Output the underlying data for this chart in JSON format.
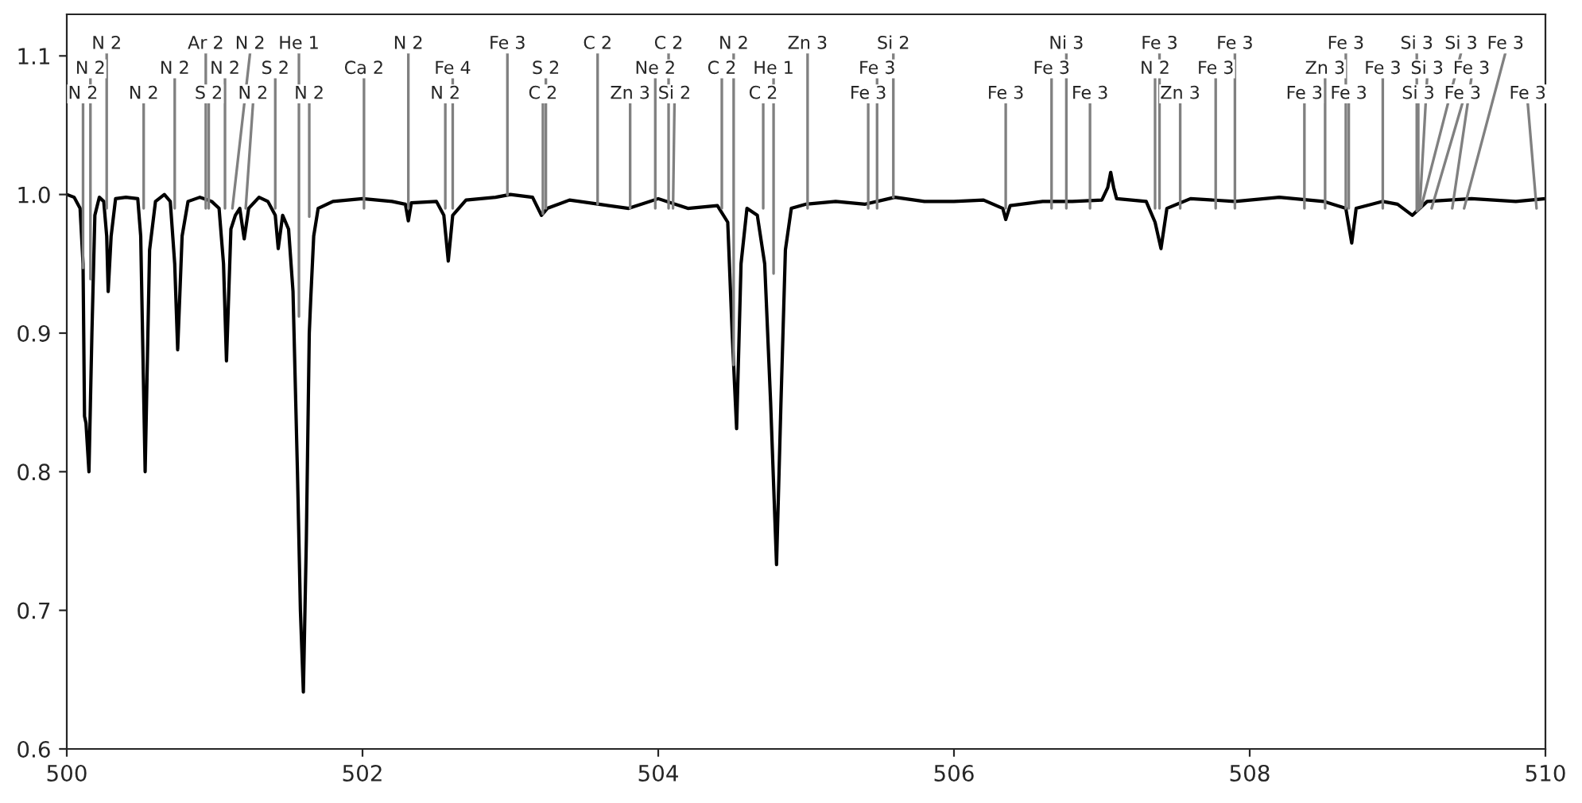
{
  "chart_data": {
    "type": "line",
    "xlim": [
      500,
      510
    ],
    "xticks": [
      500,
      502,
      504,
      506,
      508,
      510
    ],
    "ylim": [
      0.6,
      1.13
    ],
    "yticks": [
      0.6,
      0.7,
      0.8,
      0.9,
      {
        "value": 1.0,
        "label": "1.0"
      },
      1.1
    ],
    "grid": false,
    "marker": "none",
    "line_style": "solid",
    "series": [
      {
        "color": "#000000",
        "x": [
          500.0,
          500.05,
          500.09,
          500.11,
          500.12,
          500.13,
          500.15,
          500.17,
          500.19,
          500.22,
          500.25,
          500.27,
          500.28,
          500.3,
          500.33,
          500.4,
          500.48,
          500.5,
          500.53,
          500.56,
          500.6,
          500.66,
          500.7,
          500.73,
          500.75,
          500.78,
          500.82,
          500.9,
          500.98,
          501.03,
          501.06,
          501.08,
          501.11,
          501.14,
          501.17,
          501.2,
          501.23,
          501.3,
          501.36,
          501.41,
          501.43,
          501.46,
          501.5,
          501.53,
          501.56,
          501.58,
          501.6,
          501.62,
          501.64,
          501.65,
          501.67,
          501.7,
          501.8,
          502.0,
          502.2,
          502.29,
          502.31,
          502.33,
          502.5,
          502.55,
          502.58,
          502.61,
          502.7,
          502.9,
          503.0,
          503.15,
          503.21,
          503.25,
          503.4,
          503.6,
          503.8,
          504.0,
          504.2,
          504.4,
          504.47,
          504.5,
          504.53,
          504.56,
          504.6,
          504.67,
          504.72,
          504.76,
          504.8,
          504.83,
          504.86,
          504.9,
          505.0,
          505.2,
          505.4,
          505.6,
          505.8,
          506.0,
          506.2,
          506.33,
          506.35,
          506.38,
          506.6,
          506.8,
          507.0,
          507.04,
          507.06,
          507.08,
          507.1,
          507.3,
          507.36,
          507.4,
          507.44,
          507.6,
          507.9,
          508.2,
          508.5,
          508.65,
          508.69,
          508.72,
          508.9,
          509.0,
          509.1,
          509.2,
          509.5,
          509.8,
          510.0
        ],
        "values": [
          1.0,
          0.998,
          0.99,
          0.95,
          0.84,
          0.835,
          0.8,
          0.9,
          0.985,
          0.998,
          0.995,
          0.97,
          0.93,
          0.97,
          0.997,
          0.998,
          0.997,
          0.97,
          0.8,
          0.96,
          0.995,
          1.0,
          0.995,
          0.95,
          0.888,
          0.97,
          0.995,
          0.998,
          0.995,
          0.99,
          0.95,
          0.88,
          0.975,
          0.985,
          0.99,
          0.968,
          0.99,
          0.998,
          0.995,
          0.985,
          0.961,
          0.985,
          0.975,
          0.93,
          0.8,
          0.7,
          0.641,
          0.75,
          0.9,
          0.925,
          0.97,
          0.99,
          0.995,
          0.997,
          0.995,
          0.993,
          0.981,
          0.994,
          0.995,
          0.985,
          0.952,
          0.985,
          0.996,
          0.998,
          1.0,
          0.998,
          0.985,
          0.99,
          0.996,
          0.993,
          0.99,
          0.997,
          0.99,
          0.992,
          0.98,
          0.9,
          0.831,
          0.95,
          0.99,
          0.985,
          0.95,
          0.85,
          0.733,
          0.85,
          0.96,
          0.99,
          0.993,
          0.995,
          0.993,
          0.998,
          0.995,
          0.995,
          0.996,
          0.99,
          0.982,
          0.992,
          0.995,
          0.995,
          0.996,
          1.005,
          1.016,
          1.005,
          0.997,
          0.995,
          0.98,
          0.961,
          0.99,
          0.997,
          0.995,
          0.998,
          0.995,
          0.99,
          0.965,
          0.99,
          0.995,
          0.993,
          0.985,
          0.995,
          0.997,
          0.995,
          0.997
        ]
      }
    ],
    "annotations": [
      {
        "text": "N 2",
        "x": 500.11,
        "y": 0.947
      },
      {
        "text": "N 2",
        "x": 500.16,
        "y": 0.939
      },
      {
        "text": "N 2",
        "x": 500.27,
        "y": 0.99
      },
      {
        "text": "N 2",
        "x": 500.52,
        "y": 0.99
      },
      {
        "text": "N 2",
        "x": 500.73,
        "y": 0.99
      },
      {
        "text": "Ar 2",
        "x": 500.94,
        "y": 0.99
      },
      {
        "text": "S 2",
        "x": 500.96,
        "y": 0.99
      },
      {
        "text": "N 2",
        "x": 501.07,
        "y": 0.99
      },
      {
        "text": "N 2",
        "x": 501.12,
        "y": 0.99
      },
      {
        "text": "N 2",
        "x": 501.21,
        "y": 0.99
      },
      {
        "text": "S 2",
        "x": 501.41,
        "y": 0.99
      },
      {
        "text": "He 1",
        "x": 501.57,
        "y": 0.912
      },
      {
        "text": "N 2",
        "x": 501.64,
        "y": 0.984
      },
      {
        "text": "Ca 2",
        "x": 502.01,
        "y": 0.99
      },
      {
        "text": "N 2",
        "x": 502.31,
        "y": 0.99
      },
      {
        "text": "N 2",
        "x": 502.56,
        "y": 0.99
      },
      {
        "text": "Fe 4",
        "x": 502.61,
        "y": 0.99
      },
      {
        "text": "Fe 3",
        "x": 502.98,
        "y": 0.9996
      },
      {
        "text": "C 2",
        "x": 503.22,
        "y": 0.986
      },
      {
        "text": "S 2",
        "x": 503.24,
        "y": 0.99
      },
      {
        "text": "C 2",
        "x": 503.59,
        "y": 0.993
      },
      {
        "text": "Zn 3",
        "x": 503.81,
        "y": 0.99
      },
      {
        "text": "Ne 2",
        "x": 503.98,
        "y": 0.99
      },
      {
        "text": "C 2",
        "x": 504.07,
        "y": 0.99
      },
      {
        "text": "Si 2",
        "x": 504.1,
        "y": 0.99
      },
      {
        "text": "C 2",
        "x": 504.43,
        "y": 0.99
      },
      {
        "text": "N 2",
        "x": 504.51,
        "y": 0.877
      },
      {
        "text": "C 2",
        "x": 504.71,
        "y": 0.99
      },
      {
        "text": "He 1",
        "x": 504.78,
        "y": 0.943
      },
      {
        "text": "Zn 3",
        "x": 505.01,
        "y": 0.99
      },
      {
        "text": "Fe 3",
        "x": 505.42,
        "y": 0.99
      },
      {
        "text": "Fe 3",
        "x": 505.48,
        "y": 0.99
      },
      {
        "text": "Si 2",
        "x": 505.59,
        "y": 0.998
      },
      {
        "text": "Fe 3",
        "x": 506.35,
        "y": 0.99
      },
      {
        "text": "Fe 3",
        "x": 506.66,
        "y": 0.99
      },
      {
        "text": "Ni 3",
        "x": 506.76,
        "y": 0.99
      },
      {
        "text": "Fe 3",
        "x": 506.92,
        "y": 0.99
      },
      {
        "text": "N 2",
        "x": 507.36,
        "y": 0.99
      },
      {
        "text": "Fe 3",
        "x": 507.39,
        "y": 0.99
      },
      {
        "text": "Zn 3",
        "x": 507.53,
        "y": 0.99
      },
      {
        "text": "Fe 3",
        "x": 507.77,
        "y": 0.99
      },
      {
        "text": "Fe 3",
        "x": 507.9,
        "y": 0.99
      },
      {
        "text": "Fe 3",
        "x": 508.37,
        "y": 0.99
      },
      {
        "text": "Zn 3",
        "x": 508.51,
        "y": 0.99
      },
      {
        "text": "Fe 3",
        "x": 508.65,
        "y": 0.99
      },
      {
        "text": "Fe 3",
        "x": 508.67,
        "y": 0.99
      },
      {
        "text": "Fe 3",
        "x": 508.9,
        "y": 0.99
      },
      {
        "text": "Si 3",
        "x": 509.13,
        "y": 0.988
      },
      {
        "text": "Si 3",
        "x": 509.14,
        "y": 0.989
      },
      {
        "text": "Si 3",
        "x": 509.15,
        "y": 0.99
      },
      {
        "text": "Si 3",
        "x": 509.16,
        "y": 0.991
      },
      {
        "text": "Fe 3",
        "x": 509.23,
        "y": 0.99
      },
      {
        "text": "Fe 3",
        "x": 509.37,
        "y": 0.99
      },
      {
        "text": "Fe 3",
        "x": 509.45,
        "y": 0.99
      },
      {
        "text": "Fe 3",
        "x": 509.94,
        "y": 0.99
      }
    ]
  }
}
